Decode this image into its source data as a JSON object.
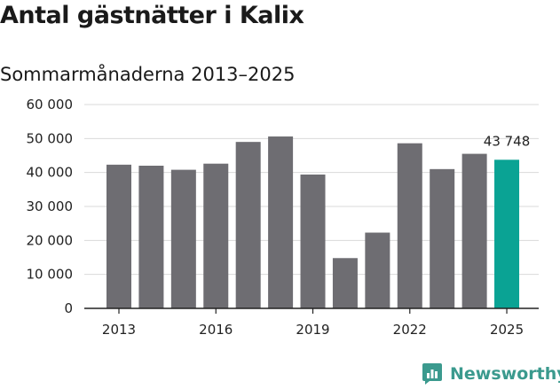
{
  "title": "Antal gästnätter i Kalix",
  "subtitle": "Sommarmånaderna 2013–2025",
  "brand": {
    "name": "Newsworthy",
    "icon": "newsworthy-chart-icon",
    "color": "#3b9a8e"
  },
  "colors": {
    "bar": "#6e6d72",
    "highlight": "#0aa394",
    "grid": "#d9d9d9",
    "axis": "#222222"
  },
  "chart_data": {
    "type": "bar",
    "title": "Antal gästnätter i Kalix",
    "subtitle": "Sommarmånaderna 2013–2025",
    "categories": [
      "2013",
      "2014",
      "2015",
      "2016",
      "2017",
      "2018",
      "2019",
      "2020",
      "2021",
      "2022",
      "2023",
      "2024",
      "2025"
    ],
    "values": [
      42300,
      42000,
      40800,
      42600,
      49000,
      50600,
      39400,
      14800,
      22300,
      48600,
      41000,
      45500,
      43748
    ],
    "highlight_index": 12,
    "data_labels": [
      {
        "index": 12,
        "text": "43 748"
      }
    ],
    "x_tick_labels": [
      "2013",
      "2016",
      "2019",
      "2022",
      "2025"
    ],
    "y_ticks": [
      0,
      10000,
      20000,
      30000,
      40000,
      50000,
      60000
    ],
    "y_tick_labels": [
      "0",
      "10 000",
      "20 000",
      "30 000",
      "40 000",
      "50 000",
      "60 000"
    ],
    "ylim": [
      0,
      60000
    ],
    "xlabel": "",
    "ylabel": "",
    "grid": true,
    "legend": "none"
  }
}
